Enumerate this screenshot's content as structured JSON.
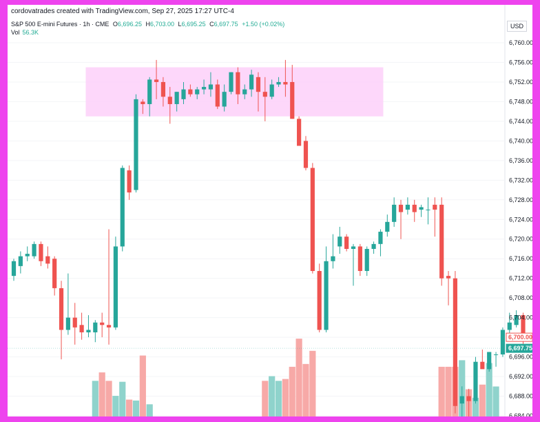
{
  "header": {
    "credit": "cordovatrades created with TradingView.com, Sep 27, 2025 17:27 UTC-4",
    "symbol": "S&P 500 E-mini Futures · 1h · CME",
    "open_label": "O",
    "open": "6,696.25",
    "high_label": "H",
    "high": "6,703.00",
    "low_label": "L",
    "low": "6,695.25",
    "close_label": "C",
    "close": "6,697.75",
    "change": "+1.50 (+0.02%)",
    "vol_label": "Vol",
    "vol_value": "56.3K",
    "currency": "USD"
  },
  "colors": {
    "up": "#26a69a",
    "down": "#ef5350",
    "up_volume": "#8fd3cc",
    "down_volume": "#f7a9a7",
    "zone": "#fdd3fa",
    "frame": "#ee44ee"
  },
  "chart_data": {
    "type": "candlestick",
    "y_axis": {
      "range": [
        6682,
        6762
      ],
      "ticks": [
        6684,
        6688,
        6692,
        6696,
        6700,
        6704,
        6708,
        6712,
        6716,
        6720,
        6724,
        6728,
        6732,
        6736,
        6740,
        6744,
        6748,
        6752,
        6756,
        6760
      ],
      "tick_labels": [
        "6,684.00",
        "6,688.00",
        "6,692.00",
        "6,696.00",
        "6,700.00",
        "6,704.00",
        "6,708.00",
        "6,712.00",
        "6,716.00",
        "6,720.00",
        "6,724.00",
        "6,728.00",
        "6,732.00",
        "6,736.00",
        "6,740.00",
        "6,744.00",
        "6,748.00",
        "6,752.00",
        "6,756.00",
        "6,760.00"
      ]
    },
    "price_tags": [
      {
        "value": 6700.0,
        "label": "6,700.00",
        "style": "down-outline"
      },
      {
        "value": 6697.75,
        "label": "6,697.75",
        "style": "up-filled"
      }
    ],
    "zone": {
      "from_bar": 11,
      "to_bar": 54,
      "low": 6745,
      "high": 6755
    },
    "volume_ratio": [
      0,
      0,
      0,
      0,
      0,
      0,
      0,
      0,
      0,
      0,
      0,
      0,
      0,
      0,
      0,
      0,
      0,
      0,
      0,
      0,
      0,
      0,
      0,
      0,
      0,
      0,
      0,
      0,
      0,
      0,
      0,
      0,
      0,
      0,
      0,
      0,
      0,
      0,
      0,
      0,
      0,
      0,
      0,
      0,
      0,
      0,
      0,
      0,
      0,
      0,
      0,
      0,
      0,
      0,
      0,
      0,
      0,
      0,
      0,
      0,
      0,
      0,
      0,
      0,
      0,
      0,
      0,
      0,
      0,
      0,
      0,
      0,
      0,
      0,
      0,
      0
    ],
    "candles": [
      {
        "o": 6712.5,
        "h": 6716.0,
        "l": 6711.5,
        "c": 6715.5
      },
      {
        "o": 6714.5,
        "h": 6717.5,
        "l": 6713.0,
        "c": 6716.5
      },
      {
        "o": 6716.5,
        "h": 6718.5,
        "l": 6715.5,
        "c": 6717.0
      },
      {
        "o": 6716.5,
        "h": 6719.5,
        "l": 6716.0,
        "c": 6719.0
      },
      {
        "o": 6719.0,
        "h": 6719.5,
        "l": 6714.5,
        "c": 6715.5
      },
      {
        "o": 6716.5,
        "h": 6718.5,
        "l": 6714.0,
        "c": 6715.0
      },
      {
        "o": 6716.0,
        "h": 6716.5,
        "l": 6708.5,
        "c": 6710.0
      },
      {
        "o": 6710.0,
        "h": 6711.5,
        "l": 6695.5,
        "c": 6701.5
      },
      {
        "o": 6701.5,
        "h": 6713.0,
        "l": 6700.5,
        "c": 6704.0
      },
      {
        "o": 6704.0,
        "h": 6707.0,
        "l": 6698.5,
        "c": 6702.0
      },
      {
        "o": 6702.5,
        "h": 6705.0,
        "l": 6699.5,
        "c": 6701.0
      },
      {
        "o": 6701.0,
        "h": 6704.5,
        "l": 6700.0,
        "c": 6701.5
      },
      {
        "o": 6701.0,
        "h": 6703.5,
        "l": 6699.0,
        "c": 6703.0
      },
      {
        "o": 6703.0,
        "h": 6705.0,
        "l": 6700.0,
        "c": 6702.5
      },
      {
        "o": 6702.5,
        "h": 6722.0,
        "l": 6698.5,
        "c": 6702.0
      },
      {
        "o": 6702.0,
        "h": 6720.5,
        "l": 6701.5,
        "c": 6718.5
      },
      {
        "o": 6718.5,
        "h": 6735.0,
        "l": 6717.5,
        "c": 6734.5
      },
      {
        "o": 6734.0,
        "h": 6735.0,
        "l": 6728.0,
        "c": 6729.5
      },
      {
        "o": 6730.0,
        "h": 6749.5,
        "l": 6729.5,
        "c": 6748.5
      },
      {
        "o": 6748.0,
        "h": 6748.5,
        "l": 6745.5,
        "c": 6747.5
      },
      {
        "o": 6747.5,
        "h": 6753.0,
        "l": 6745.0,
        "c": 6752.5
      },
      {
        "o": 6752.5,
        "h": 6756.5,
        "l": 6748.5,
        "c": 6752.0
      },
      {
        "o": 6752.0,
        "h": 6753.0,
        "l": 6747.0,
        "c": 6749.0
      },
      {
        "o": 6749.0,
        "h": 6751.0,
        "l": 6743.5,
        "c": 6747.5
      },
      {
        "o": 6747.5,
        "h": 6750.0,
        "l": 6746.0,
        "c": 6750.0
      },
      {
        "o": 6748.5,
        "h": 6752.0,
        "l": 6747.5,
        "c": 6750.5
      },
      {
        "o": 6750.5,
        "h": 6751.5,
        "l": 6749.0,
        "c": 6749.5
      },
      {
        "o": 6749.5,
        "h": 6751.0,
        "l": 6748.5,
        "c": 6750.5
      },
      {
        "o": 6750.5,
        "h": 6752.5,
        "l": 6749.5,
        "c": 6751.0
      },
      {
        "o": 6750.5,
        "h": 6754.0,
        "l": 6749.0,
        "c": 6751.5
      },
      {
        "o": 6751.5,
        "h": 6752.5,
        "l": 6746.5,
        "c": 6747.0
      },
      {
        "o": 6747.0,
        "h": 6751.5,
        "l": 6746.0,
        "c": 6750.0
      },
      {
        "o": 6750.0,
        "h": 6754.0,
        "l": 6749.5,
        "c": 6754.0
      },
      {
        "o": 6754.0,
        "h": 6755.0,
        "l": 6747.5,
        "c": 6749.5
      },
      {
        "o": 6749.5,
        "h": 6751.5,
        "l": 6748.5,
        "c": 6750.5
      },
      {
        "o": 6750.5,
        "h": 6754.5,
        "l": 6749.0,
        "c": 6753.5
      },
      {
        "o": 6753.0,
        "h": 6754.0,
        "l": 6746.0,
        "c": 6750.0
      },
      {
        "o": 6750.0,
        "h": 6753.0,
        "l": 6744.0,
        "c": 6749.0
      },
      {
        "o": 6749.0,
        "h": 6752.5,
        "l": 6748.5,
        "c": 6751.5
      },
      {
        "o": 6751.5,
        "h": 6753.0,
        "l": 6751.0,
        "c": 6752.0
      },
      {
        "o": 6752.0,
        "h": 6756.5,
        "l": 6749.0,
        "c": 6751.5
      },
      {
        "o": 6752.0,
        "h": 6755.5,
        "l": 6744.5,
        "c": 6744.5
      },
      {
        "o": 6744.5,
        "h": 6745.0,
        "l": 6739.0,
        "c": 6739.0
      },
      {
        "o": 6740.0,
        "h": 6741.0,
        "l": 6734.0,
        "c": 6734.5
      },
      {
        "o": 6734.5,
        "h": 6735.5,
        "l": 6713.0,
        "c": 6713.5
      },
      {
        "o": 6713.5,
        "h": 6715.0,
        "l": 6701.0,
        "c": 6701.5
      },
      {
        "o": 6701.5,
        "h": 6718.5,
        "l": 6701.0,
        "c": 6715.5
      },
      {
        "o": 6715.5,
        "h": 6721.0,
        "l": 6714.0,
        "c": 6716.5
      },
      {
        "o": 6718.5,
        "h": 6722.5,
        "l": 6717.0,
        "c": 6720.5
      },
      {
        "o": 6720.5,
        "h": 6721.0,
        "l": 6717.5,
        "c": 6718.0
      },
      {
        "o": 6718.0,
        "h": 6719.0,
        "l": 6710.5,
        "c": 6718.5
      },
      {
        "o": 6718.5,
        "h": 6719.0,
        "l": 6712.5,
        "c": 6713.5
      },
      {
        "o": 6713.5,
        "h": 6718.5,
        "l": 6712.5,
        "c": 6718.0
      },
      {
        "o": 6718.0,
        "h": 6719.5,
        "l": 6717.0,
        "c": 6719.0
      },
      {
        "o": 6719.0,
        "h": 6722.0,
        "l": 6716.5,
        "c": 6721.5
      },
      {
        "o": 6721.5,
        "h": 6725.0,
        "l": 6720.5,
        "c": 6723.5
      },
      {
        "o": 6723.5,
        "h": 6728.5,
        "l": 6722.5,
        "c": 6727.0
      },
      {
        "o": 6727.0,
        "h": 6728.0,
        "l": 6720.0,
        "c": 6725.5
      },
      {
        "o": 6726.0,
        "h": 6728.5,
        "l": 6725.0,
        "c": 6727.0
      },
      {
        "o": 6727.0,
        "h": 6728.0,
        "l": 6723.5,
        "c": 6725.5
      },
      {
        "o": 6726.0,
        "h": 6727.0,
        "l": 6724.5,
        "c": 6726.5
      },
      {
        "o": 6726.0,
        "h": 6728.5,
        "l": 6723.0,
        "c": 6726.0
      },
      {
        "o": 6727.0,
        "h": 6728.5,
        "l": 6720.5,
        "c": 6726.0
      },
      {
        "o": 6727.0,
        "h": 6728.5,
        "l": 6710.5,
        "c": 6712.0
      },
      {
        "o": 6712.5,
        "h": 6713.5,
        "l": 6706.5,
        "c": 6712.0
      },
      {
        "o": 6712.0,
        "h": 6713.5,
        "l": 6684.5,
        "c": 6686.0
      },
      {
        "o": 6686.5,
        "h": 6690.0,
        "l": 6683.5,
        "c": 6688.0
      },
      {
        "o": 6688.0,
        "h": 6689.5,
        "l": 6683.5,
        "c": 6687.0
      },
      {
        "o": 6687.0,
        "h": 6696.0,
        "l": 6686.5,
        "c": 6695.0
      },
      {
        "o": 6695.0,
        "h": 6697.5,
        "l": 6694.0,
        "c": 6693.5
      },
      {
        "o": 6693.5,
        "h": 6697.0,
        "l": 6693.0,
        "c": 6697.0
      },
      {
        "o": 6696.5,
        "h": 6697.0,
        "l": 6694.0,
        "c": 6696.5
      },
      {
        "o": 6696.5,
        "h": 6702.0,
        "l": 6696.0,
        "c": 6701.5
      },
      {
        "o": 6701.5,
        "h": 6705.0,
        "l": 6700.5,
        "c": 6703.0
      },
      {
        "o": 6702.5,
        "h": 6705.5,
        "l": 6702.0,
        "c": 6704.5
      },
      {
        "o": 6704.5,
        "h": 6705.0,
        "l": 6697.0,
        "c": 6700.0
      }
    ],
    "volume": [
      0,
      0,
      0,
      0,
      0,
      0,
      0,
      0,
      0,
      0,
      0,
      0,
      38,
      47,
      38,
      22,
      37,
      18,
      17,
      65,
      13,
      0,
      0,
      0,
      0,
      0,
      0,
      0,
      0,
      0,
      0,
      0,
      0,
      0,
      0,
      0,
      0,
      38,
      43,
      38,
      40,
      53,
      83,
      56,
      70,
      0,
      0,
      0,
      0,
      0,
      0,
      0,
      0,
      0,
      0,
      0,
      0,
      0,
      0,
      0,
      0,
      0,
      0,
      53,
      53,
      53,
      60,
      29,
      20,
      34,
      57,
      32,
      0,
      0,
      0,
      0
    ]
  }
}
